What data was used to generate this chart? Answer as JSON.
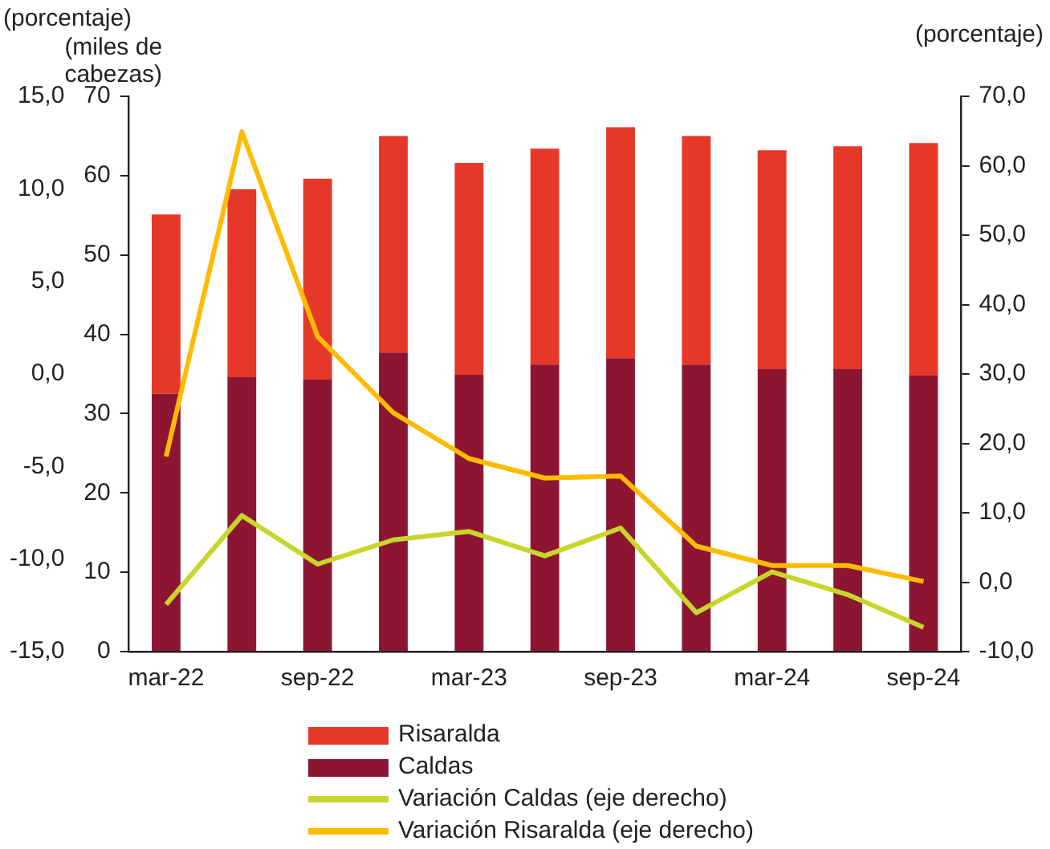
{
  "chart_data": {
    "type": "bar",
    "stacked": true,
    "categories": [
      "mar-22",
      null,
      "sep-22",
      null,
      "mar-23",
      null,
      "sep-23",
      null,
      "mar-24",
      null,
      "sep-24"
    ],
    "series": [
      {
        "name": "Caldas",
        "color": "#8c1632",
        "values": [
          32.5,
          34.6,
          34.3,
          37.7,
          34.9,
          36.2,
          37.0,
          36.2,
          35.6,
          35.6,
          34.8
        ]
      },
      {
        "name": "Risaralda",
        "color": "#e63828",
        "values": [
          22.6,
          23.7,
          25.3,
          27.3,
          26.7,
          27.2,
          29.1,
          28.8,
          27.6,
          28.1,
          29.3
        ]
      },
      {
        "name": "Variación Caldas (eje derecho)",
        "type": "line",
        "axis": "y2",
        "color": "#c8d62c",
        "values": [
          -3.2,
          9.6,
          2.6,
          6.1,
          7.3,
          3.8,
          7.8,
          -4.4,
          1.5,
          -1.8,
          -6.5
        ]
      },
      {
        "name": "Variación Risaralda (eje derecho)",
        "type": "line",
        "axis": "y2",
        "color": "#ffbb00",
        "values": [
          18.1,
          64.9,
          35.4,
          24.4,
          17.8,
          15.0,
          15.3,
          5.2,
          2.4,
          2.4,
          0.1
        ]
      }
    ],
    "ylabel": "(miles de cabezas)",
    "y2label": "(porcentaje)",
    "y3label": "(porcentaje)",
    "ylim": [
      0,
      70
    ],
    "yticks": [
      0,
      10,
      20,
      30,
      40,
      50,
      60,
      70
    ],
    "y2lim": [
      -10,
      70
    ],
    "y2ticks": [
      {
        "value": -10,
        "label": "-10,0"
      },
      {
        "value": 0,
        "label": "0,0"
      },
      {
        "value": 10,
        "label": "10,0"
      },
      {
        "value": 20,
        "label": "20,0"
      },
      {
        "value": 30,
        "label": "30,0"
      },
      {
        "value": 40,
        "label": "40,0"
      },
      {
        "value": 50,
        "label": "50,0"
      },
      {
        "value": 60,
        "label": "60,0"
      },
      {
        "value": 70,
        "label": "70,0"
      }
    ],
    "y3lim": [
      -15,
      15
    ],
    "y3ticks": [
      {
        "value": -15,
        "label": "-15,0"
      },
      {
        "value": -10,
        "label": "-10,0"
      },
      {
        "value": -5,
        "label": "-5,0"
      },
      {
        "value": 0,
        "label": "0,0"
      },
      {
        "value": 5,
        "label": "5,0"
      },
      {
        "value": 10,
        "label": "10,0"
      },
      {
        "value": 15,
        "label": "15,0"
      }
    ],
    "grid": false,
    "legend": "bottom",
    "marker": "none",
    "line_style": "solid"
  }
}
